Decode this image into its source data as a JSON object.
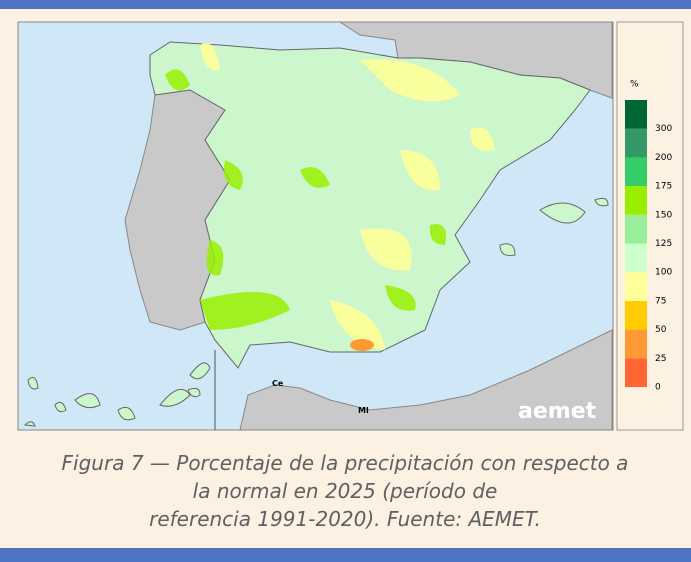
{
  "map": {
    "labels": {
      "ceuta": "Ce",
      "melilla": "Ml",
      "logo": "aemet"
    },
    "legend": {
      "unit": "%",
      "ticks": [
        0,
        25,
        50,
        75,
        100,
        125,
        150,
        175,
        200,
        300
      ],
      "colors": [
        "#ff6633",
        "#ff9933",
        "#ffcc00",
        "#ffff99",
        "#ccffcc",
        "#99ee99",
        "#99ee00",
        "#33cc66",
        "#339966",
        "#006633"
      ]
    }
  },
  "caption": {
    "lines": [
      "Figura 7 — Porcentaje de la precipitación con respecto a",
      "la normal en 2025 (período de",
      "referencia 1991-2020). Fuente: AEMET."
    ]
  }
}
